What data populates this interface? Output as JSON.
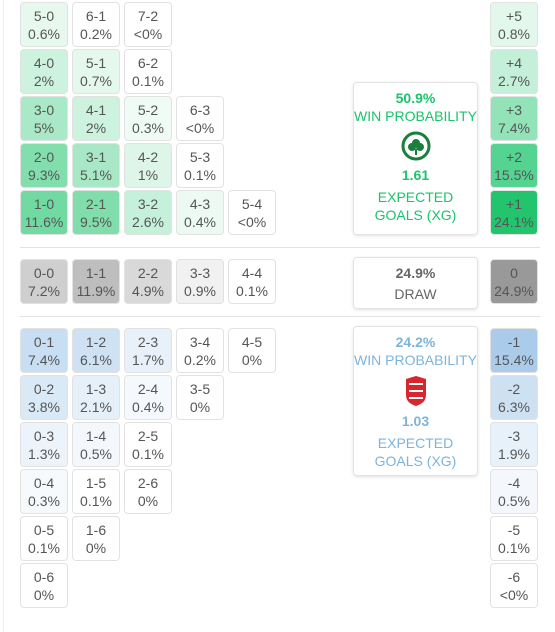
{
  "sections": [
    {
      "color": "#1dc46b",
      "rows": [
        {
          "cells": [
            {
              "score": "5-0",
              "pct": "0.6%"
            },
            {
              "score": "6-1",
              "pct": "0.2%"
            },
            {
              "score": "7-2",
              "pct": "<0%"
            }
          ],
          "margin": {
            "score": "+5",
            "pct": "0.8%"
          }
        },
        {
          "cells": [
            {
              "score": "4-0",
              "pct": "2%"
            },
            {
              "score": "5-1",
              "pct": "0.7%"
            },
            {
              "score": "6-2",
              "pct": "0.1%"
            }
          ],
          "margin": {
            "score": "+4",
            "pct": "2.7%"
          }
        },
        {
          "cells": [
            {
              "score": "3-0",
              "pct": "5%"
            },
            {
              "score": "4-1",
              "pct": "2%"
            },
            {
              "score": "5-2",
              "pct": "0.3%"
            },
            {
              "score": "6-3",
              "pct": "<0%"
            }
          ],
          "margin": {
            "score": "+3",
            "pct": "7.4%"
          }
        },
        {
          "cells": [
            {
              "score": "2-0",
              "pct": "9.3%"
            },
            {
              "score": "3-1",
              "pct": "5.1%"
            },
            {
              "score": "4-2",
              "pct": "1%"
            },
            {
              "score": "5-3",
              "pct": "0.1%"
            }
          ],
          "margin": {
            "score": "+2",
            "pct": "15.5%"
          }
        },
        {
          "cells": [
            {
              "score": "1-0",
              "pct": "11.6%"
            },
            {
              "score": "2-1",
              "pct": "9.5%"
            },
            {
              "score": "3-2",
              "pct": "2.6%"
            },
            {
              "score": "4-3",
              "pct": "0.4%"
            },
            {
              "score": "5-4",
              "pct": "<0%"
            }
          ],
          "margin": {
            "score": "+1",
            "pct": "24.1%"
          }
        }
      ]
    },
    {
      "color": "#999999",
      "rows": [
        {
          "cells": [
            {
              "score": "0-0",
              "pct": "7.2%"
            },
            {
              "score": "1-1",
              "pct": "11.9%"
            },
            {
              "score": "2-2",
              "pct": "4.9%"
            },
            {
              "score": "3-3",
              "pct": "0.9%"
            },
            {
              "score": "4-4",
              "pct": "0.1%"
            }
          ],
          "margin": {
            "score": "0",
            "pct": "24.9%"
          }
        }
      ]
    },
    {
      "color": "#8dbbe3",
      "rows": [
        {
          "cells": [
            {
              "score": "0-1",
              "pct": "7.4%"
            },
            {
              "score": "1-2",
              "pct": "6.1%"
            },
            {
              "score": "2-3",
              "pct": "1.7%"
            },
            {
              "score": "3-4",
              "pct": "0.2%"
            },
            {
              "score": "4-5",
              "pct": "0%"
            }
          ],
          "margin": {
            "score": "-1",
            "pct": "15.4%"
          }
        },
        {
          "cells": [
            {
              "score": "0-2",
              "pct": "3.8%"
            },
            {
              "score": "1-3",
              "pct": "2.1%"
            },
            {
              "score": "2-4",
              "pct": "0.4%"
            },
            {
              "score": "3-5",
              "pct": "0%"
            }
          ],
          "margin": {
            "score": "-2",
            "pct": "6.3%"
          }
        },
        {
          "cells": [
            {
              "score": "0-3",
              "pct": "1.3%"
            },
            {
              "score": "1-4",
              "pct": "0.5%"
            },
            {
              "score": "2-5",
              "pct": "0.1%"
            }
          ],
          "margin": {
            "score": "-3",
            "pct": "1.9%"
          }
        },
        {
          "cells": [
            {
              "score": "0-4",
              "pct": "0.3%"
            },
            {
              "score": "1-5",
              "pct": "0.1%"
            },
            {
              "score": "2-6",
              "pct": "0%"
            }
          ],
          "margin": {
            "score": "-4",
            "pct": "0.5%"
          }
        },
        {
          "cells": [
            {
              "score": "0-5",
              "pct": "0.1%"
            },
            {
              "score": "1-6",
              "pct": "0%"
            }
          ],
          "margin": {
            "score": "-5",
            "pct": "0.1%"
          }
        },
        {
          "cells": [
            {
              "score": "0-6",
              "pct": "0%"
            }
          ],
          "margin": {
            "score": "-6",
            "pct": "<0%"
          }
        }
      ]
    }
  ],
  "info": {
    "home": {
      "probability": "50.9%",
      "label": "WIN PROBABILITY",
      "xg": "1.61",
      "xg_label": "EXPECTED GOALS (XG)",
      "color": "#19c46b"
    },
    "draw": {
      "probability": "24.9%",
      "label": "DRAW",
      "color": "#666666"
    },
    "away": {
      "probability": "24.2%",
      "label": "WIN PROBABILITY",
      "xg": "1.03",
      "xg_label": "EXPECTED GOALS (XG)",
      "color": "#7db4dc"
    }
  }
}
